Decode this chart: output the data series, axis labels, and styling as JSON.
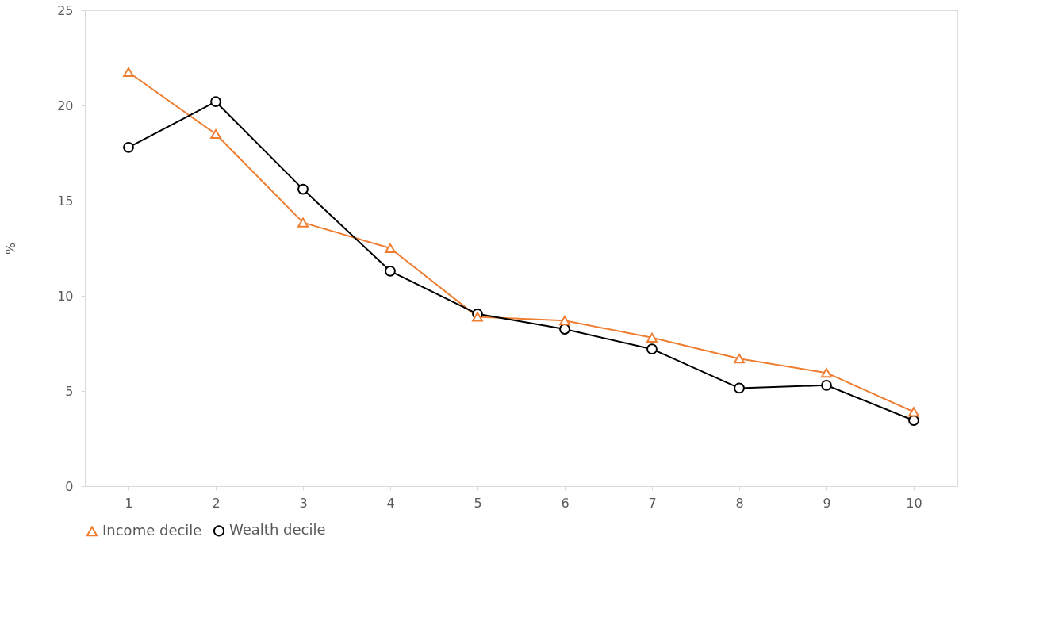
{
  "chart_data": {
    "type": "line",
    "ylabel": "%",
    "categories": [
      "1",
      "2",
      "3",
      "4",
      "5",
      "6",
      "7",
      "8",
      "9",
      "10"
    ],
    "series": [
      {
        "name": "Income decile",
        "color": "#ed7d31",
        "marker": "triangle",
        "values": [
          21.75,
          18.5,
          13.85,
          12.5,
          8.9,
          8.7,
          7.8,
          6.7,
          5.95,
          3.9
        ]
      },
      {
        "name": "Wealth decile",
        "color": "#000000",
        "marker": "circle",
        "values": [
          17.8,
          20.2,
          15.6,
          11.3,
          9.05,
          8.25,
          7.2,
          5.15,
          5.3,
          3.45
        ]
      }
    ],
    "ylim": [
      0,
      25
    ],
    "yticks": [
      0,
      5,
      10,
      15,
      20,
      25
    ],
    "grid": false,
    "legend": "bottom",
    "line_style": "solid"
  }
}
